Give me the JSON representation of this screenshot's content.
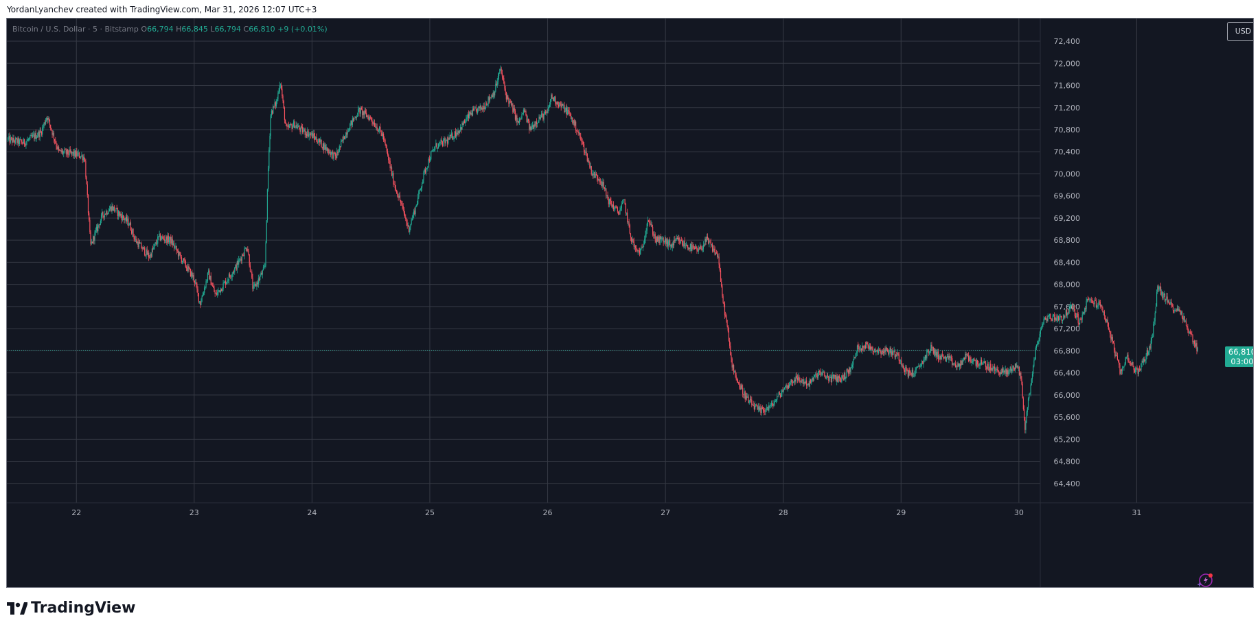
{
  "header": {
    "text": "YordanLyanchev created with TradingView.com, Mar 31, 2026 12:07 UTC+3"
  },
  "legend": {
    "symbol": "Bitcoin / U.S. Dollar · 5 · Bitstamp",
    "o_label": "O",
    "o_value": "66,794",
    "h_label": "H",
    "h_value": "66,845",
    "l_label": "L",
    "l_value": "66,794",
    "c_label": "C",
    "c_value": "66,810",
    "change": "+9 (+0.01%)"
  },
  "currency_button": "USD",
  "last_price": {
    "price": "66,810",
    "countdown": "03:00"
  },
  "brand": {
    "name": "TradingView",
    "logo_icon": "tradingview-logo-icon"
  },
  "ai_button_icon": "sparkle-icon",
  "colors": {
    "background": "#131722",
    "grid": "#363a45",
    "up": "#22ab94",
    "down": "#f7525f",
    "axis_text": "#b2b5be",
    "price_line": "#22ab94"
  },
  "chart_data": {
    "type": "candlestick",
    "symbol": "BTCUSD",
    "interval": "5",
    "exchange": "Bitstamp",
    "y_axis_ticks": [
      "72,400",
      "72,000",
      "71,600",
      "71,200",
      "70,800",
      "70,400",
      "70,000",
      "69,600",
      "69,200",
      "68,800",
      "68,400",
      "68,000",
      "67,600",
      "67,200",
      "66,800",
      "66,400",
      "66,000",
      "65,600",
      "65,200",
      "64,800",
      "64,400"
    ],
    "y_tick_values": [
      72400,
      72000,
      71600,
      71200,
      70800,
      70400,
      70000,
      69600,
      69200,
      68800,
      68400,
      68000,
      67600,
      67200,
      66800,
      66400,
      66000,
      65600,
      65200,
      64800,
      64400
    ],
    "ylim": [
      64050,
      72810
    ],
    "x_axis_ticks": [
      "22",
      "23",
      "24",
      "25",
      "26",
      "27",
      "28",
      "29",
      "30",
      "31"
    ],
    "x_tick_days": [
      22,
      23,
      24,
      25,
      26,
      27,
      28,
      29,
      30,
      31
    ],
    "xlim": [
      21.41,
      32.0
    ],
    "last_close": 66810,
    "price_path": [
      [
        21.42,
        70620
      ],
      [
        21.55,
        70560
      ],
      [
        21.7,
        70750
      ],
      [
        21.75,
        71050
      ],
      [
        21.85,
        70400
      ],
      [
        22.0,
        70350
      ],
      [
        22.07,
        70300
      ],
      [
        22.1,
        69350
      ],
      [
        22.12,
        68700
      ],
      [
        22.22,
        69250
      ],
      [
        22.3,
        69400
      ],
      [
        22.45,
        69100
      ],
      [
        22.5,
        68800
      ],
      [
        22.62,
        68500
      ],
      [
        22.7,
        68850
      ],
      [
        22.8,
        68800
      ],
      [
        22.88,
        68500
      ],
      [
        23.0,
        68100
      ],
      [
        23.05,
        67650
      ],
      [
        23.12,
        68200
      ],
      [
        23.18,
        67800
      ],
      [
        23.25,
        68000
      ],
      [
        23.35,
        68300
      ],
      [
        23.45,
        68700
      ],
      [
        23.5,
        67900
      ],
      [
        23.6,
        68300
      ],
      [
        23.63,
        70200
      ],
      [
        23.65,
        71100
      ],
      [
        23.7,
        71300
      ],
      [
        23.73,
        71700
      ],
      [
        23.78,
        70800
      ],
      [
        23.85,
        70900
      ],
      [
        23.9,
        70800
      ],
      [
        24.0,
        70700
      ],
      [
        24.1,
        70500
      ],
      [
        24.2,
        70300
      ],
      [
        24.3,
        70800
      ],
      [
        24.4,
        71150
      ],
      [
        24.5,
        71000
      ],
      [
        24.6,
        70700
      ],
      [
        24.7,
        69800
      ],
      [
        24.75,
        69500
      ],
      [
        24.82,
        69000
      ],
      [
        24.88,
        69400
      ],
      [
        24.95,
        70000
      ],
      [
        25.0,
        70300
      ],
      [
        25.05,
        70500
      ],
      [
        25.15,
        70600
      ],
      [
        25.25,
        70800
      ],
      [
        25.35,
        71100
      ],
      [
        25.45,
        71200
      ],
      [
        25.55,
        71500
      ],
      [
        25.6,
        71900
      ],
      [
        25.65,
        71400
      ],
      [
        25.7,
        71200
      ],
      [
        25.75,
        70900
      ],
      [
        25.8,
        71150
      ],
      [
        25.85,
        70800
      ],
      [
        25.92,
        71000
      ],
      [
        26.0,
        71100
      ],
      [
        26.03,
        71400
      ],
      [
        26.08,
        71300
      ],
      [
        26.18,
        71100
      ],
      [
        26.25,
        70800
      ],
      [
        26.32,
        70400
      ],
      [
        26.38,
        70000
      ],
      [
        26.45,
        69900
      ],
      [
        26.52,
        69500
      ],
      [
        26.6,
        69300
      ],
      [
        26.65,
        69500
      ],
      [
        26.7,
        68900
      ],
      [
        26.75,
        68600
      ],
      [
        26.8,
        68600
      ],
      [
        26.85,
        69200
      ],
      [
        26.92,
        68800
      ],
      [
        26.98,
        68800
      ],
      [
        27.05,
        68700
      ],
      [
        27.1,
        68800
      ],
      [
        27.18,
        68700
      ],
      [
        27.28,
        68600
      ],
      [
        27.35,
        68800
      ],
      [
        27.45,
        68500
      ],
      [
        27.48,
        67800
      ],
      [
        27.52,
        67300
      ],
      [
        27.56,
        66600
      ],
      [
        27.62,
        66200
      ],
      [
        27.7,
        65900
      ],
      [
        27.8,
        65700
      ],
      [
        27.9,
        65800
      ],
      [
        28.0,
        66100
      ],
      [
        28.1,
        66300
      ],
      [
        28.22,
        66200
      ],
      [
        28.3,
        66400
      ],
      [
        28.4,
        66300
      ],
      [
        28.5,
        66300
      ],
      [
        28.58,
        66500
      ],
      [
        28.63,
        66850
      ],
      [
        28.7,
        66900
      ],
      [
        28.8,
        66800
      ],
      [
        28.9,
        66800
      ],
      [
        28.98,
        66700
      ],
      [
        29.05,
        66400
      ],
      [
        29.12,
        66400
      ],
      [
        29.18,
        66600
      ],
      [
        29.25,
        66850
      ],
      [
        29.32,
        66700
      ],
      [
        29.4,
        66650
      ],
      [
        29.48,
        66500
      ],
      [
        29.55,
        66700
      ],
      [
        29.62,
        66600
      ],
      [
        29.7,
        66550
      ],
      [
        29.8,
        66450
      ],
      [
        29.9,
        66400
      ],
      [
        29.98,
        66550
      ],
      [
        30.02,
        66300
      ],
      [
        30.05,
        65400
      ],
      [
        30.1,
        66200
      ],
      [
        30.15,
        66900
      ],
      [
        30.22,
        67400
      ],
      [
        30.3,
        67400
      ],
      [
        30.37,
        67400
      ],
      [
        30.45,
        67600
      ],
      [
        30.52,
        67300
      ],
      [
        30.58,
        67700
      ],
      [
        30.62,
        67700
      ],
      [
        30.7,
        67600
      ],
      [
        30.75,
        67300
      ],
      [
        30.8,
        66900
      ],
      [
        30.86,
        66400
      ],
      [
        30.92,
        66700
      ],
      [
        31.0,
        66400
      ],
      [
        31.08,
        66700
      ],
      [
        31.13,
        67000
      ],
      [
        31.18,
        68000
      ],
      [
        31.22,
        67800
      ],
      [
        31.3,
        67600
      ],
      [
        31.38,
        67500
      ],
      [
        31.43,
        67200
      ],
      [
        31.48,
        67000
      ],
      [
        31.52,
        66810
      ]
    ]
  }
}
